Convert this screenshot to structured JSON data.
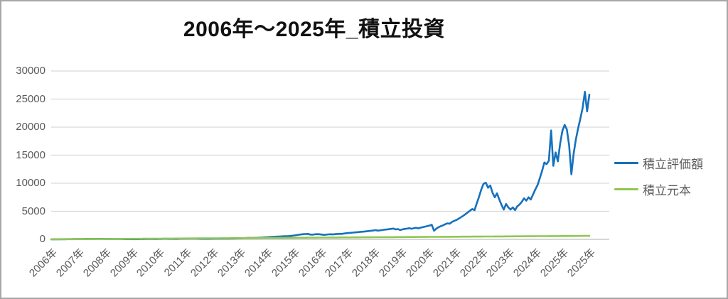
{
  "window": {
    "background": "#ffffff",
    "border_color": "#a6a6a6"
  },
  "chart_data": {
    "type": "line",
    "title": "2006年～2025年_積立投資",
    "xlabel": "",
    "ylabel": "",
    "ylim": [
      0,
      30000
    ],
    "y_ticks": [
      0,
      5000,
      10000,
      15000,
      20000,
      25000,
      30000
    ],
    "grid": "horizontal",
    "gridline_color": "#d9d9d9",
    "axis_line_color": "#bfbfbf",
    "axis_text_color": "#595959",
    "legend_position": "right",
    "x_tick_labels": [
      "2006年",
      "2007年",
      "2008年",
      "2009年",
      "2010年",
      "2011年",
      "2012年",
      "2013年",
      "2014年",
      "2015年",
      "2016年",
      "2017年",
      "2018年",
      "2019年",
      "2020年",
      "2021年",
      "2022年",
      "2023年",
      "2024年",
      "2025年",
      "2025年"
    ],
    "x_unit": "monthly, 2006-01 to 2025-12",
    "series": [
      {
        "name": "積立評価額",
        "color": "#1571bd",
        "values": [
          4,
          8,
          13,
          17,
          21,
          25,
          28,
          32,
          37,
          42,
          47,
          52,
          56,
          60,
          65,
          70,
          76,
          80,
          84,
          78,
          83,
          90,
          86,
          84,
          80,
          74,
          70,
          76,
          80,
          74,
          66,
          62,
          48,
          36,
          33,
          37,
          34,
          30,
          33,
          40,
          47,
          53,
          58,
          63,
          68,
          66,
          72,
          78,
          84,
          89,
          95,
          101,
          92,
          86,
          91,
          88,
          94,
          101,
          108,
          115,
          121,
          127,
          124,
          131,
          128,
          124,
          119,
          107,
          101,
          112,
          107,
          113,
          120,
          128,
          136,
          130,
          122,
          129,
          137,
          144,
          152,
          157,
          167,
          181,
          198,
          214,
          230,
          247,
          266,
          253,
          269,
          280,
          295,
          312,
          331,
          360,
          385,
          410,
          432,
          455,
          477,
          500,
          523,
          548,
          575,
          555,
          600,
          650,
          700,
          760,
          820,
          870,
          920,
          950,
          980,
          860,
          820,
          900,
          930,
          910,
          860,
          800,
          840,
          880,
          910,
          870,
          930,
          960,
          990,
          970,
          1040,
          1090,
          1130,
          1170,
          1200,
          1240,
          1280,
          1320,
          1360,
          1380,
          1430,
          1480,
          1530,
          1570,
          1650,
          1560,
          1600,
          1660,
          1720,
          1760,
          1810,
          1870,
          1920,
          1770,
          1840,
          1660,
          1770,
          1860,
          1910,
          1990,
          1880,
          1980,
          2060,
          1960,
          2070,
          2160,
          2270,
          2360,
          2450,
          2600,
          1550,
          1900,
          2150,
          2350,
          2500,
          2700,
          2850,
          2800,
          3100,
          3300,
          3450,
          3700,
          3950,
          4200,
          4500,
          4800,
          5100,
          5400,
          5200,
          6400,
          7600,
          8900,
          9900,
          10100,
          9200,
          9600,
          8300,
          7500,
          8200,
          7100,
          6100,
          5300,
          6300,
          5700,
          5300,
          5700,
          5200,
          5900,
          6200,
          6700,
          7300,
          6900,
          7500,
          7100,
          8000,
          8900,
          9700,
          10900,
          12200,
          13700,
          13400,
          14000,
          19400,
          13100,
          15500,
          13900,
          17000,
          19300,
          20400,
          19600,
          16800,
          11600,
          15200,
          17800,
          19800,
          21500,
          23400,
          26300,
          22800,
          25800
        ]
      },
      {
        "name": "積立元本",
        "color": "#90c753",
        "values": [
          3,
          5,
          8,
          10,
          13,
          16,
          18,
          21,
          23,
          26,
          29,
          31,
          34,
          36,
          39,
          42,
          44,
          47,
          49,
          52,
          55,
          57,
          60,
          62,
          65,
          68,
          70,
          73,
          75,
          78,
          81,
          83,
          86,
          88,
          91,
          94,
          96,
          99,
          101,
          104,
          107,
          109,
          112,
          114,
          117,
          120,
          122,
          125,
          127,
          130,
          133,
          135,
          138,
          140,
          143,
          146,
          148,
          151,
          153,
          156,
          159,
          161,
          164,
          166,
          169,
          172,
          174,
          177,
          179,
          182,
          185,
          187,
          190,
          192,
          195,
          198,
          200,
          203,
          205,
          208,
          211,
          213,
          216,
          218,
          221,
          224,
          226,
          229,
          231,
          234,
          236,
          239,
          242,
          244,
          247,
          250,
          252,
          255,
          257,
          260,
          262,
          265,
          268,
          270,
          273,
          275,
          278,
          281,
          283,
          286,
          288,
          291,
          294,
          296,
          299,
          301,
          304,
          306,
          309,
          312,
          314,
          317,
          319,
          322,
          325,
          327,
          330,
          332,
          335,
          338,
          340,
          343,
          345,
          348,
          350,
          353,
          356,
          358,
          361,
          363,
          366,
          369,
          371,
          374,
          377,
          379,
          382,
          384,
          387,
          390,
          392,
          395,
          397,
          400,
          402,
          405,
          408,
          410,
          413,
          416,
          418,
          421,
          423,
          426,
          429,
          431,
          434,
          436,
          439,
          442,
          444,
          447,
          449,
          452,
          455,
          457,
          460,
          462,
          465,
          468,
          470,
          473,
          475,
          478,
          481,
          483,
          486,
          488,
          491,
          494,
          496,
          499,
          501,
          504,
          507,
          509,
          512,
          514,
          517,
          520,
          522,
          525,
          527,
          530,
          533,
          535,
          538,
          540,
          543,
          546,
          548,
          551,
          553,
          556,
          559,
          561,
          564,
          566,
          569,
          572,
          574,
          577,
          579,
          582,
          585,
          587,
          590,
          592,
          595,
          598,
          600,
          603,
          605,
          608,
          611,
          613,
          616,
          618,
          621,
          624
        ]
      }
    ]
  }
}
